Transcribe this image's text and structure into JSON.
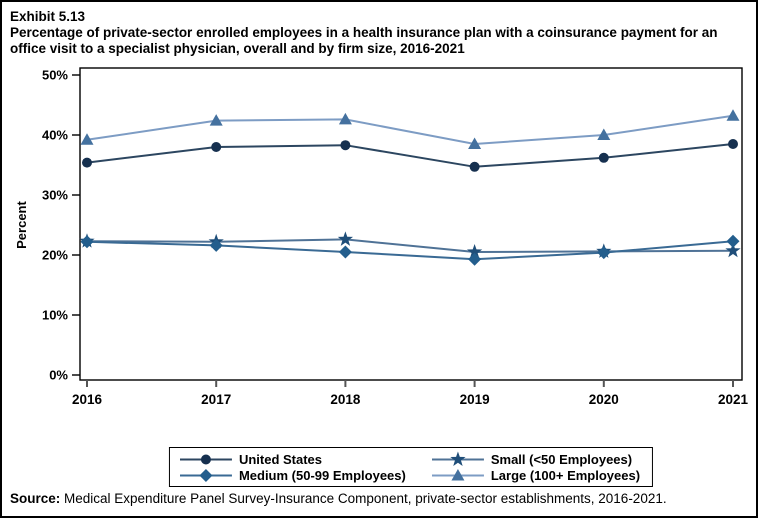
{
  "header": {
    "exhibit": "Exhibit 5.13",
    "title_lines": [
      "Percentage of private-sector enrolled employees in a health insurance plan with a coinsurance payment for an",
      "office visit to a specialist physician, overall and by firm size, 2016-2021"
    ]
  },
  "chart_data": {
    "type": "line",
    "x": [
      2016,
      2017,
      2018,
      2019,
      2020,
      2021
    ],
    "xlabel": "",
    "ylabel": "Percent",
    "ylim": [
      0,
      51
    ],
    "yticks": [
      0,
      10,
      20,
      30,
      40,
      50
    ],
    "ytick_suffix": "%",
    "grid": false,
    "legend_position": "bottom",
    "series": [
      {
        "name": "United States",
        "marker": "circle",
        "color": "#16304f",
        "line_color": "#2c4660",
        "values": [
          35.4,
          38.0,
          38.3,
          34.7,
          36.2,
          38.5
        ]
      },
      {
        "name": "Small (<50 Employees)",
        "marker": "star",
        "color": "#1f4e79",
        "line_color": "#4f7296",
        "values": [
          22.3,
          22.2,
          22.6,
          20.5,
          20.6,
          20.7
        ]
      },
      {
        "name": "Medium (50-99 Employees)",
        "marker": "diamond",
        "color": "#235e8d",
        "line_color": "#3a6a94",
        "values": [
          22.2,
          21.6,
          20.5,
          19.3,
          20.4,
          22.3
        ]
      },
      {
        "name": "Large (100+ Employees)",
        "marker": "triangle",
        "color": "#44719f",
        "line_color": "#7d9cc4",
        "values": [
          39.2,
          42.4,
          42.6,
          38.5,
          40.0,
          43.2
        ]
      }
    ]
  },
  "source": {
    "label": "Source:",
    "text": " Medical Expenditure Panel Survey-Insurance Component, private-sector establishments, 2016-2021."
  }
}
